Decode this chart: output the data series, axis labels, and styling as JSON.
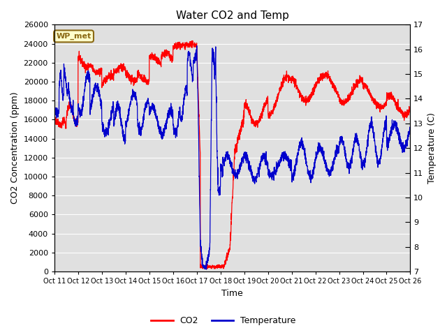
{
  "title": "Water CO2 and Temp",
  "xlabel": "Time",
  "ylabel_left": "CO2 Concentration (ppm)",
  "ylabel_right": "Temperature (C)",
  "x_tick_labels": [
    "Oct 11",
    "Oct 12",
    "Oct 13",
    "Oct 14",
    "Oct 15",
    "Oct 16",
    "Oct 17",
    "Oct 18",
    "Oct 19",
    "Oct 20",
    "Oct 21",
    "Oct 22",
    "Oct 23",
    "Oct 24",
    "Oct 25",
    "Oct 26"
  ],
  "ylim_left": [
    0,
    26000
  ],
  "ylim_right": [
    7.0,
    17.0
  ],
  "yticks_left": [
    0,
    2000,
    4000,
    6000,
    8000,
    10000,
    12000,
    14000,
    16000,
    18000,
    20000,
    22000,
    24000,
    26000
  ],
  "yticks_right": [
    7.0,
    8.0,
    9.0,
    10.0,
    11.0,
    12.0,
    13.0,
    14.0,
    15.0,
    16.0,
    17.0
  ],
  "annotation_text": "WP_met",
  "annotation_color": "#8B6914",
  "annotation_bg": "#FFFFCC",
  "bg_color": "#E0E0E0",
  "co2_color": "#FF0000",
  "temp_color": "#0000CC",
  "legend_co2": "CO2",
  "legend_temp": "Temperature",
  "title_fontsize": 11,
  "axis_label_fontsize": 9,
  "tick_fontsize": 8
}
